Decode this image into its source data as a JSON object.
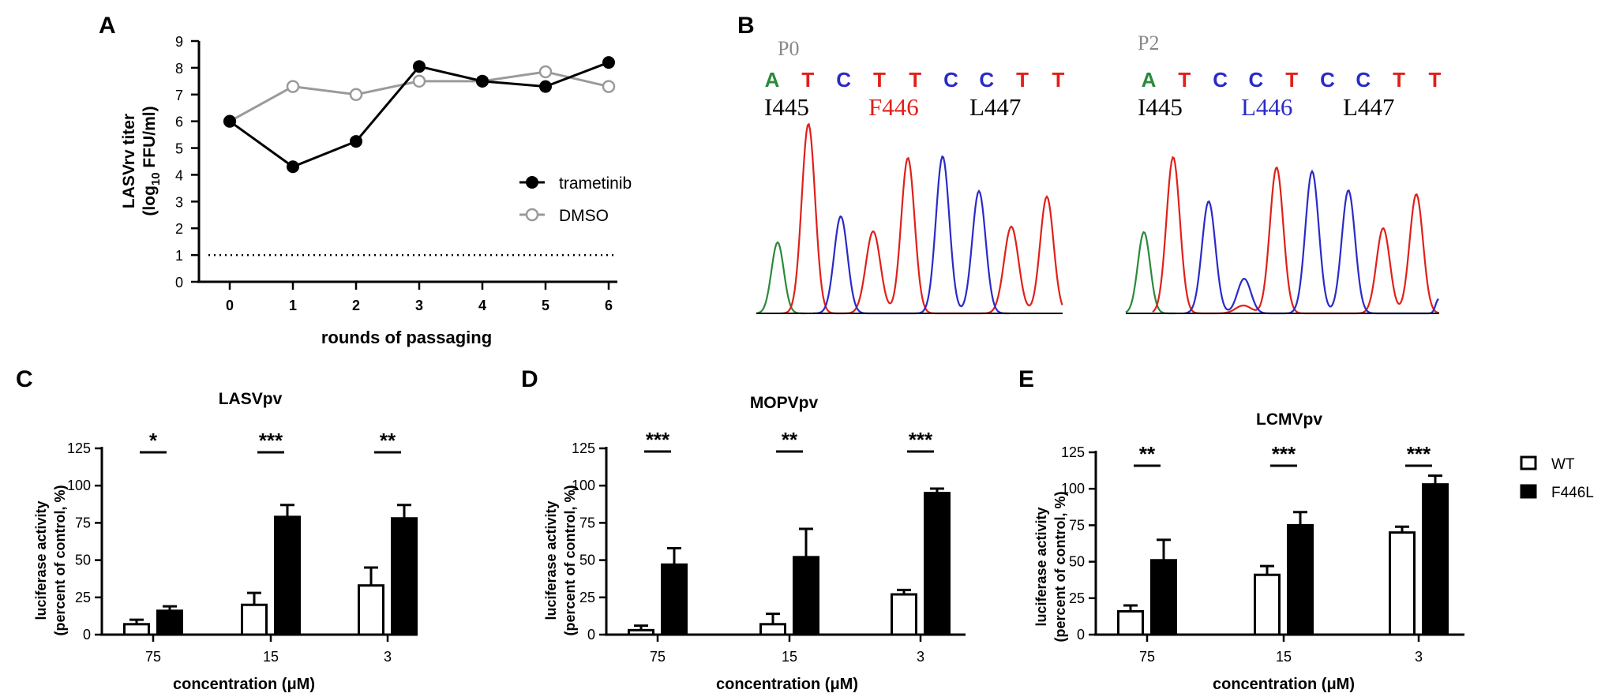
{
  "panels": {
    "A": "A",
    "B": "B",
    "C": "C",
    "D": "D",
    "E": "E"
  },
  "colors": {
    "trametinib": "#000000",
    "dmso": "#9a9a9a",
    "red": "#e0201a",
    "blue": "#2a2ac8",
    "green": "#2a8a3a",
    "traceLabel": "#888888"
  },
  "chart_data": [
    {
      "panel": "A",
      "type": "line",
      "x": [
        0,
        1,
        2,
        3,
        4,
        5,
        6
      ],
      "xticks": [
        "0",
        "1",
        "2",
        "3",
        "4",
        "5",
        "6"
      ],
      "yticks": [
        "0",
        "1",
        "2",
        "3",
        "4",
        "5",
        "6",
        "7",
        "8",
        "9"
      ],
      "ylim": [
        0,
        9
      ],
      "xlabel": "rounds of passaging",
      "ylabel_line1": "LASVrv titer",
      "ylabel_line2_pre": "(log",
      "ylabel_line2_sub": "10",
      "ylabel_line2_post": " FFU/ml)",
      "threshold": 1,
      "series": [
        {
          "name": "trametinib",
          "values": [
            6.0,
            4.3,
            5.25,
            8.05,
            7.5,
            7.3,
            8.2
          ],
          "filled": true
        },
        {
          "name": "DMSO",
          "values": [
            6.0,
            7.3,
            7.0,
            7.5,
            7.5,
            7.85,
            7.3
          ],
          "filled": false
        }
      ]
    },
    {
      "panel": "C",
      "type": "bar",
      "title": "LASVpv",
      "categories": [
        "75",
        "15",
        "3"
      ],
      "xlabel": "concentration (μM)",
      "ylabel_line1": "luciferase activity",
      "ylabel_line2": "(percent of control, %)",
      "ylim": [
        0,
        125
      ],
      "yticks": [
        "0",
        "25",
        "50",
        "75",
        "100",
        "125"
      ],
      "series": [
        {
          "name": "WT",
          "values": [
            7,
            20,
            33
          ],
          "errors": [
            3,
            8,
            12
          ]
        },
        {
          "name": "F446L",
          "values": [
            16,
            79,
            78
          ],
          "errors": [
            3,
            8,
            9
          ]
        }
      ],
      "significance": [
        "*",
        "***",
        "**"
      ]
    },
    {
      "panel": "D",
      "type": "bar",
      "title": "MOPVpv",
      "categories": [
        "75",
        "15",
        "3"
      ],
      "xlabel": "concentration (μM)",
      "ylabel_line1": "luciferase activity",
      "ylabel_line2": "(percent of control, %)",
      "ylim": [
        0,
        125
      ],
      "yticks": [
        "0",
        "25",
        "50",
        "75",
        "100",
        "125"
      ],
      "series": [
        {
          "name": "WT",
          "values": [
            3,
            7,
            27
          ],
          "errors": [
            3,
            7,
            3
          ]
        },
        {
          "name": "F446L",
          "values": [
            47,
            52,
            95
          ],
          "errors": [
            11,
            19,
            3
          ]
        }
      ],
      "significance": [
        "***",
        "**",
        "***"
      ]
    },
    {
      "panel": "E",
      "type": "bar",
      "title": "LCMVpv",
      "categories": [
        "75",
        "15",
        "3"
      ],
      "xlabel": "concentration (μM)",
      "ylabel_line1": "luciferase activity",
      "ylabel_line2": "(percent of control, %)",
      "ylim": [
        0,
        125
      ],
      "yticks": [
        "0",
        "25",
        "50",
        "75",
        "100",
        "125"
      ],
      "series": [
        {
          "name": "WT",
          "values": [
            16,
            41,
            70
          ],
          "errors": [
            4,
            6,
            4
          ]
        },
        {
          "name": "F446L",
          "values": [
            51,
            75,
            103
          ],
          "errors": [
            14,
            9,
            6
          ]
        }
      ],
      "significance": [
        "**",
        "***",
        "***"
      ]
    }
  ],
  "legendE": {
    "wt": "WT",
    "f446l": "F446L"
  },
  "sequencing": {
    "p0": {
      "label": "P0",
      "bases": [
        "A",
        "T",
        "C",
        "T",
        "T",
        "C",
        "C",
        "T",
        "T"
      ],
      "residues": [
        "I445",
        "F446",
        "L447"
      ]
    },
    "p2": {
      "label": "P2",
      "bases": [
        "A",
        "T",
        "C",
        "C",
        "T",
        "C",
        "C",
        "T",
        "T"
      ],
      "residues": [
        "I445",
        "L446",
        "L447"
      ]
    }
  }
}
